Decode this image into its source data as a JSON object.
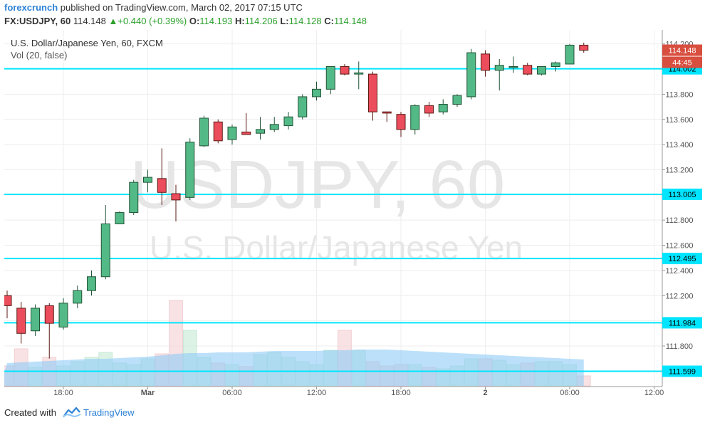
{
  "header": {
    "publisher": "forexcrunch",
    "published_text": "published on TradingView.com, March 02, 2017 07:15 UTC",
    "symbol": "FX:USDJPY, 60",
    "last": "114.148",
    "change": "+0.440 (+0.39%)",
    "o_label": "O:",
    "o_value": "114.193",
    "h_label": "H:",
    "h_value": "114.206",
    "l_label": "L:",
    "l_value": "114.128",
    "c_label": "C:",
    "c_value": "114.148",
    "up_color": "#2ca02c"
  },
  "chart_data": {
    "type": "candlestick",
    "title": "U.S. Dollar/Japanese Yen, 60, FXCM",
    "indicator": "Vol (20, false)",
    "watermark_symbol": "USDJPY, 60",
    "watermark_name": "U.S. Dollar/Japanese Yen",
    "ylim": [
      111.5,
      114.3
    ],
    "y_ticks": [
      "114.200",
      "114.000",
      "113.800",
      "113.600",
      "113.400",
      "113.200",
      "113.000",
      "112.800",
      "112.600",
      "112.400",
      "112.200",
      "112.000",
      "111.800",
      "111.600"
    ],
    "x_ticks": [
      {
        "label": "18:00",
        "index": 4
      },
      {
        "label": "Mar",
        "index": 10
      },
      {
        "label": "06:00",
        "index": 16
      },
      {
        "label": "12:00",
        "index": 22
      },
      {
        "label": "18:00",
        "index": 28
      },
      {
        "label": "2",
        "index": 34
      },
      {
        "label": "06:00",
        "index": 40
      },
      {
        "label": "12:00",
        "index": 46
      }
    ],
    "candles": [
      {
        "o": 112.2,
        "h": 112.24,
        "l": 112.02,
        "c": 112.12
      },
      {
        "o": 112.1,
        "h": 112.15,
        "l": 111.82,
        "c": 111.9
      },
      {
        "o": 111.92,
        "h": 112.13,
        "l": 111.88,
        "c": 112.1
      },
      {
        "o": 112.12,
        "h": 112.14,
        "l": 111.7,
        "c": 111.98
      },
      {
        "o": 111.95,
        "h": 112.18,
        "l": 111.93,
        "c": 112.14
      },
      {
        "o": 112.14,
        "h": 112.28,
        "l": 112.1,
        "c": 112.24
      },
      {
        "o": 112.24,
        "h": 112.4,
        "l": 112.2,
        "c": 112.35
      },
      {
        "o": 112.35,
        "h": 112.92,
        "l": 112.33,
        "c": 112.77
      },
      {
        "o": 112.77,
        "h": 112.87,
        "l": 112.77,
        "c": 112.86
      },
      {
        "o": 112.86,
        "h": 113.12,
        "l": 112.84,
        "c": 113.1
      },
      {
        "o": 113.1,
        "h": 113.2,
        "l": 113.02,
        "c": 113.14
      },
      {
        "o": 113.13,
        "h": 113.37,
        "l": 112.92,
        "c": 113.02
      },
      {
        "o": 113.01,
        "h": 113.08,
        "l": 112.79,
        "c": 112.96
      },
      {
        "o": 112.98,
        "h": 113.45,
        "l": 112.96,
        "c": 113.42
      },
      {
        "o": 113.39,
        "h": 113.63,
        "l": 113.38,
        "c": 113.61
      },
      {
        "o": 113.58,
        "h": 113.6,
        "l": 113.41,
        "c": 113.43
      },
      {
        "o": 113.44,
        "h": 113.56,
        "l": 113.4,
        "c": 113.54
      },
      {
        "o": 113.5,
        "h": 113.65,
        "l": 113.48,
        "c": 113.48
      },
      {
        "o": 113.49,
        "h": 113.62,
        "l": 113.44,
        "c": 113.52
      },
      {
        "o": 113.52,
        "h": 113.62,
        "l": 113.5,
        "c": 113.56
      },
      {
        "o": 113.55,
        "h": 113.66,
        "l": 113.52,
        "c": 113.62
      },
      {
        "o": 113.62,
        "h": 113.8,
        "l": 113.6,
        "c": 113.78
      },
      {
        "o": 113.78,
        "h": 113.9,
        "l": 113.75,
        "c": 113.84
      },
      {
        "o": 113.84,
        "h": 114.0,
        "l": 113.8,
        "c": 114.02
      },
      {
        "o": 114.02,
        "h": 114.04,
        "l": 113.95,
        "c": 113.96
      },
      {
        "o": 113.96,
        "h": 114.06,
        "l": 113.84,
        "c": 113.97
      },
      {
        "o": 113.96,
        "h": 113.98,
        "l": 113.59,
        "c": 113.66
      },
      {
        "o": 113.66,
        "h": 113.66,
        "l": 113.58,
        "c": 113.65
      },
      {
        "o": 113.64,
        "h": 113.66,
        "l": 113.46,
        "c": 113.52
      },
      {
        "o": 113.52,
        "h": 113.72,
        "l": 113.48,
        "c": 113.71
      },
      {
        "o": 113.71,
        "h": 113.74,
        "l": 113.62,
        "c": 113.65
      },
      {
        "o": 113.66,
        "h": 113.76,
        "l": 113.64,
        "c": 113.72
      },
      {
        "o": 113.72,
        "h": 113.8,
        "l": 113.7,
        "c": 113.79
      },
      {
        "o": 113.78,
        "h": 114.16,
        "l": 113.76,
        "c": 114.13
      },
      {
        "o": 114.12,
        "h": 114.15,
        "l": 113.94,
        "c": 113.99
      },
      {
        "o": 113.99,
        "h": 114.08,
        "l": 113.83,
        "c": 114.03
      },
      {
        "o": 114.02,
        "h": 114.1,
        "l": 113.97,
        "c": 114.02
      },
      {
        "o": 114.03,
        "h": 114.05,
        "l": 113.95,
        "c": 113.96
      },
      {
        "o": 113.96,
        "h": 114.02,
        "l": 113.95,
        "c": 114.02
      },
      {
        "o": 114.02,
        "h": 114.06,
        "l": 113.98,
        "c": 114.05
      },
      {
        "o": 114.04,
        "h": 114.2,
        "l": 114.04,
        "c": 114.19
      },
      {
        "o": 114.19,
        "h": 114.21,
        "l": 114.13,
        "c": 114.15
      }
    ],
    "volume": [
      28,
      52,
      26,
      40,
      28,
      34,
      40,
      47,
      32,
      30,
      38,
      45,
      120,
      78,
      40,
      32,
      30,
      27,
      44,
      47,
      40,
      34,
      30,
      50,
      78,
      50,
      34,
      28,
      30,
      30,
      26,
      24,
      28,
      38,
      38,
      36,
      30,
      32,
      34,
      34,
      30,
      14
    ],
    "volume_ma": [
      32,
      33,
      34,
      35,
      36,
      37,
      38,
      38,
      39,
      40,
      41,
      43,
      45,
      46,
      46,
      47,
      47,
      47,
      48,
      49,
      49,
      49,
      49,
      50,
      50,
      51,
      51,
      51,
      50,
      49,
      48,
      47,
      46,
      45,
      44,
      43,
      42,
      41,
      40,
      39,
      38,
      37
    ],
    "horizontal_lines": [
      {
        "value": 114.002,
        "label": "114.002"
      },
      {
        "value": 113.005,
        "label": "113.005"
      },
      {
        "value": 112.495,
        "label": "112.495"
      },
      {
        "value": 111.984,
        "label": "111.984"
      },
      {
        "value": 111.599,
        "label": "111.599"
      }
    ],
    "last_price_label": "114.148",
    "countdown_label": "44:45",
    "colors": {
      "up": "#53b987",
      "up_border": "#225437",
      "down": "#eb4d5c",
      "down_border": "#5b1a13",
      "hline": "#00e5ff",
      "price_tag": "#d84e3f",
      "volume_ma": "#8fcbf7"
    }
  },
  "footer": {
    "created_with": "Created with",
    "brand": "TradingView"
  }
}
